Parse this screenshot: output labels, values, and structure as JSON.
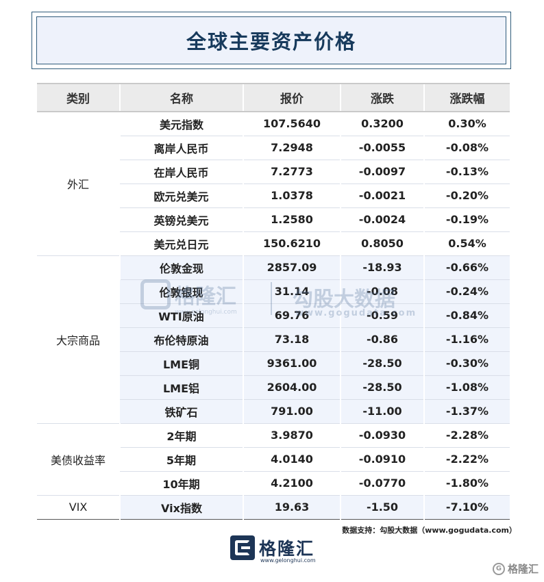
{
  "title": "全球主要资产价格",
  "headers": [
    "类别",
    "名称",
    "报价",
    "涨跌",
    "涨跌幅"
  ],
  "groups": [
    {
      "category": "外汇",
      "rows": [
        {
          "name": "美元指数",
          "price": "107.5640",
          "change": "0.3200",
          "pct": "0.30%",
          "dir": "up"
        },
        {
          "name": "离岸人民币",
          "price": "7.2948",
          "change": "-0.0055",
          "pct": "-0.08%",
          "dir": "down"
        },
        {
          "name": "在岸人民币",
          "price": "7.2773",
          "change": "-0.0097",
          "pct": "-0.13%",
          "dir": "down"
        },
        {
          "name": "欧元兑美元",
          "price": "1.0378",
          "change": "-0.0021",
          "pct": "-0.20%",
          "dir": "down"
        },
        {
          "name": "英镑兑美元",
          "price": "1.2580",
          "change": "-0.0024",
          "pct": "-0.19%",
          "dir": "down"
        },
        {
          "name": "美元兑日元",
          "price": "150.6210",
          "change": "0.8050",
          "pct": "0.54%",
          "dir": "up"
        }
      ]
    },
    {
      "category": "大宗商品",
      "rows": [
        {
          "name": "伦敦金现",
          "price": "2857.09",
          "change": "-18.93",
          "pct": "-0.66%",
          "dir": "down"
        },
        {
          "name": "伦敦银现",
          "price": "31.14",
          "change": "-0.08",
          "pct": "-0.24%",
          "dir": "down"
        },
        {
          "name": "WTI原油",
          "price": "69.76",
          "change": "-0.59",
          "pct": "-0.84%",
          "dir": "down"
        },
        {
          "name": "布伦特原油",
          "price": "73.18",
          "change": "-0.86",
          "pct": "-1.16%",
          "dir": "down"
        },
        {
          "name": "LME铜",
          "price": "9361.00",
          "change": "-28.50",
          "pct": "-0.30%",
          "dir": "down"
        },
        {
          "name": "LME铝",
          "price": "2604.00",
          "change": "-28.50",
          "pct": "-1.08%",
          "dir": "down"
        },
        {
          "name": "铁矿石",
          "price": "791.00",
          "change": "-11.00",
          "pct": "-1.37%",
          "dir": "down"
        }
      ]
    },
    {
      "category": "美债收益率",
      "rows": [
        {
          "name": "2年期",
          "price": "3.9870",
          "change": "-0.0930",
          "pct": "-2.28%",
          "dir": "down"
        },
        {
          "name": "5年期",
          "price": "4.0140",
          "change": "-0.0910",
          "pct": "-2.22%",
          "dir": "down"
        },
        {
          "name": "10年期",
          "price": "4.2100",
          "change": "-0.0770",
          "pct": "-1.80%",
          "dir": "down"
        }
      ]
    },
    {
      "category": "VIX",
      "rows": [
        {
          "name": "Vix指数",
          "price": "19.63",
          "change": "-1.50",
          "pct": "-7.10%",
          "dir": "down"
        }
      ]
    }
  ],
  "watermark": {
    "left_text": "格隆汇",
    "left_url": "www.gelonghui.com",
    "right_text": "勾股大数据",
    "right_url": "www.gogudata.com"
  },
  "source": "数据支持：勾股大数据（www.gogudata.com）",
  "footer": {
    "brand": "格隆汇",
    "url": "www.gelonghui.com"
  },
  "corner_label": "格隆汇",
  "colors": {
    "up": "#b0202a",
    "down": "#2f9a2f",
    "title": "#173a5c"
  }
}
